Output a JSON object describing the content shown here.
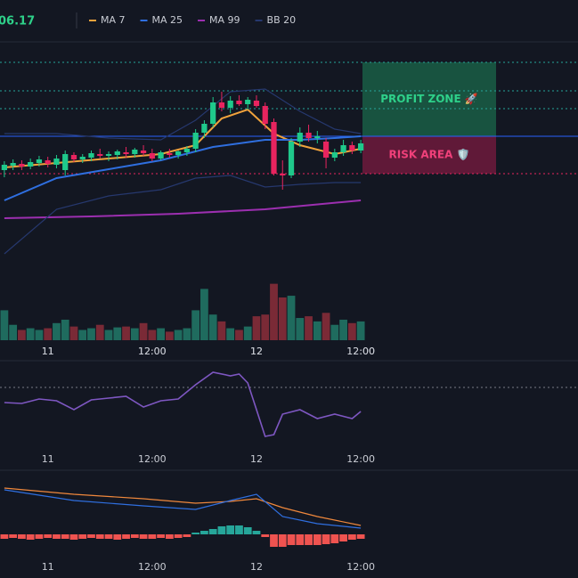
{
  "header": {
    "price": "06.17"
  },
  "chart_data": [
    {
      "type": "candlestick",
      "x": [
        0,
        1,
        2,
        3,
        4,
        5,
        6,
        7,
        8,
        9,
        10,
        11,
        12,
        13,
        14,
        15,
        16,
        17,
        18,
        19,
        20,
        21,
        22,
        23,
        24,
        25,
        26,
        27,
        28,
        29,
        30,
        31,
        32,
        33,
        34,
        35,
        36,
        37,
        38,
        39,
        40,
        41
      ],
      "open": [
        194,
        199,
        201,
        198,
        202,
        205,
        200,
        194,
        211,
        206,
        208,
        212,
        210,
        211,
        214,
        212,
        216,
        213,
        207,
        213,
        211,
        214,
        218,
        236,
        246,
        270,
        264,
        272,
        268,
        272,
        266,
        248,
        190,
        188,
        226,
        236,
        230,
        226,
        208,
        214,
        222,
        216
      ],
      "high": [
        204,
        206,
        205,
        207,
        210,
        209,
        211,
        216,
        214,
        212,
        216,
        218,
        215,
        217,
        220,
        219,
        222,
        218,
        216,
        218,
        216,
        221,
        240,
        250,
        276,
        282,
        277,
        278,
        276,
        278,
        270,
        252,
        205,
        230,
        242,
        245,
        238,
        230,
        218,
        228,
        226,
        228
      ],
      "low": [
        186,
        194,
        194,
        195,
        198,
        197,
        196,
        188,
        203,
        202,
        204,
        207,
        204,
        206,
        208,
        208,
        210,
        204,
        205,
        208,
        207,
        210,
        214,
        230,
        242,
        260,
        258,
        266,
        262,
        264,
        240,
        188,
        172,
        185,
        220,
        226,
        224,
        196,
        204,
        210,
        212,
        213
      ],
      "close": [
        200,
        202,
        198,
        203,
        206,
        201,
        207,
        212,
        206,
        209,
        213,
        210,
        212,
        215,
        212,
        217,
        213,
        207,
        214,
        211,
        215,
        218,
        236,
        246,
        270,
        264,
        272,
        268,
        273,
        266,
        246,
        190,
        188,
        226,
        236,
        230,
        232,
        208,
        214,
        222,
        216,
        224
      ],
      "up_color": "#1fc98b",
      "down_color": "#e8245f",
      "xlim": [
        -0.5,
        41.5
      ],
      "ylim": [
        80,
        330
      ],
      "xticks": [
        {
          "value": 5,
          "label": "11"
        },
        {
          "value": 17,
          "label": "12:00"
        },
        {
          "value": 29,
          "label": "12"
        },
        {
          "value": 41,
          "label": "12:00"
        }
      ],
      "lines": [
        {
          "name": "MA 7",
          "color": "#f0a23c",
          "x": [
            0,
            6,
            12,
            18,
            22,
            25,
            28,
            31,
            34,
            38,
            41
          ],
          "values": [
            197,
            202,
            207,
            212,
            222,
            252,
            262,
            235,
            222,
            212,
            218
          ]
        },
        {
          "name": "MA 25",
          "color": "#2f6fe0",
          "x": [
            0,
            6,
            12,
            18,
            24,
            30,
            34,
            38,
            41
          ],
          "values": [
            160,
            185,
            195,
            205,
            220,
            228,
            228,
            230,
            232
          ]
        },
        {
          "name": "MA 99",
          "color": "#9c2fb0",
          "x": [
            0,
            10,
            20,
            30,
            41
          ],
          "values": [
            140,
            142,
            145,
            150,
            160
          ]
        },
        {
          "name": "BB 20",
          "color": "#26386e",
          "x": [
            0,
            6,
            12,
            18,
            22,
            26,
            30,
            34,
            38,
            41
          ],
          "values": [
            235,
            235,
            230,
            228,
            250,
            282,
            285,
            260,
            240,
            235
          ],
          "lower": [
            100,
            150,
            165,
            172,
            185,
            188,
            175,
            178,
            180,
            180
          ]
        }
      ],
      "levels": [
        {
          "value": 315,
          "color": "#26a69a",
          "style": "dotted"
        },
        {
          "value": 283,
          "color": "#26a69a",
          "style": "dotted"
        },
        {
          "value": 263,
          "color": "#26a69a",
          "style": "dotted"
        },
        {
          "value": 232,
          "color": "#2962ff",
          "style": "solid"
        },
        {
          "value": 190,
          "color": "#e8245f",
          "style": "dotted"
        }
      ],
      "zones": [
        {
          "label": "PROFIT ZONE 🚀",
          "from": 315,
          "to": 232,
          "fill": "#1a5e45",
          "text_color": "#2ed18a"
        },
        {
          "label": "RISK AREA 🛡️",
          "from": 232,
          "to": 190,
          "fill": "#6e1a3c",
          "text_color": "#f0407a"
        }
      ]
    },
    {
      "type": "bar",
      "values": [
        35,
        18,
        12,
        14,
        12,
        14,
        20,
        24,
        16,
        12,
        14,
        18,
        12,
        15,
        16,
        14,
        20,
        12,
        14,
        10,
        12,
        14,
        35,
        60,
        30,
        22,
        14,
        12,
        16,
        28,
        30,
        66,
        50,
        52,
        26,
        28,
        22,
        32,
        18,
        24,
        20,
        22
      ],
      "up_color": "#1f6b5e",
      "down_color": "#7a2a36",
      "xlim": [
        -0.5,
        41.5
      ],
      "ylim": [
        0,
        75
      ],
      "xticks": [
        {
          "value": 5,
          "label": "11"
        },
        {
          "value": 17,
          "label": "12:00"
        },
        {
          "value": 29,
          "label": "12"
        },
        {
          "value": 41,
          "label": "12:00"
        }
      ]
    },
    {
      "type": "line",
      "series": [
        {
          "color": "#7e57c2",
          "x": [
            0,
            2,
            4,
            6,
            8,
            10,
            12,
            14,
            16,
            18,
            20,
            22,
            24,
            26,
            27,
            28,
            29,
            30,
            31,
            32,
            34,
            36,
            38,
            40,
            41
          ],
          "values": [
            53,
            52,
            57,
            55,
            45,
            56,
            58,
            60,
            48,
            55,
            57,
            73,
            87,
            83,
            85,
            75,
            45,
            15,
            17,
            40,
            45,
            35,
            40,
            35,
            43
          ]
        }
      ],
      "levels": [
        70
      ],
      "xlim": [
        -0.5,
        41.5
      ],
      "ylim": [
        0,
        100
      ],
      "xticks": [
        {
          "value": 5,
          "label": "11"
        },
        {
          "value": 17,
          "label": "12:00"
        },
        {
          "value": 29,
          "label": "12"
        },
        {
          "value": 41,
          "label": "12:00"
        }
      ]
    },
    {
      "type": "macd",
      "series": [
        {
          "color": "#f0883c",
          "x": [
            0,
            8,
            16,
            22,
            26,
            29,
            32,
            36,
            41
          ],
          "values": [
            52,
            45,
            40,
            35,
            37,
            40,
            30,
            20,
            10
          ]
        },
        {
          "color": "#2f6fe0",
          "x": [
            0,
            8,
            16,
            22,
            26,
            29,
            32,
            36,
            41
          ],
          "values": [
            50,
            38,
            32,
            28,
            38,
            45,
            20,
            12,
            7
          ]
        }
      ],
      "histogram": [
        -5,
        -4,
        -5,
        -6,
        -5,
        -4,
        -5,
        -5,
        -6,
        -5,
        -4,
        -5,
        -5,
        -6,
        -5,
        -4,
        -5,
        -5,
        -4,
        -5,
        -4,
        -3,
        2,
        4,
        6,
        9,
        10,
        10,
        8,
        4,
        -3,
        -14,
        -14,
        -12,
        -12,
        -12,
        -12,
        -11,
        -10,
        -8,
        -6,
        -5
      ],
      "up_color": "#26a69a",
      "down_color": "#ef5350",
      "xlim": [
        -0.5,
        41.5
      ],
      "ylim": [
        -25,
        70
      ],
      "xticks": [
        {
          "value": 5,
          "label": "11"
        },
        {
          "value": 17,
          "label": "12:00"
        },
        {
          "value": 29,
          "label": "12"
        },
        {
          "value": 41,
          "label": "12:00"
        }
      ]
    }
  ]
}
